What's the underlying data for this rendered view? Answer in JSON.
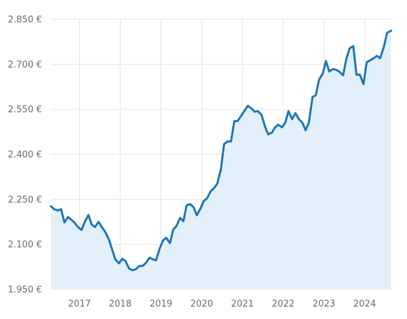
{
  "colors": {
    "line": "#1a75bb",
    "area": "#e4f0f9",
    "grid": "#e4e4e4",
    "tick_text": "#666a73"
  },
  "chart_data": {
    "type": "area",
    "title": "",
    "xlabel": "",
    "ylabel": "",
    "grid": true,
    "legend": "none",
    "xlim": [
      2016.3,
      2024.65
    ],
    "ylim": [
      1950,
      2850
    ],
    "y_ticks": [
      {
        "value": 1950,
        "label": "1.950 €"
      },
      {
        "value": 2100,
        "label": "2.100 €"
      },
      {
        "value": 2250,
        "label": "2.250 €"
      },
      {
        "value": 2400,
        "label": "2.400 €"
      },
      {
        "value": 2550,
        "label": "2.550 €"
      },
      {
        "value": 2700,
        "label": "2.700 €"
      },
      {
        "value": 2850,
        "label": "2.850 €"
      }
    ],
    "x_ticks": [
      {
        "value": 2017,
        "label": "2017"
      },
      {
        "value": 2018,
        "label": "2018"
      },
      {
        "value": 2019,
        "label": "2019"
      },
      {
        "value": 2020,
        "label": "2020"
      },
      {
        "value": 2021,
        "label": "2021"
      },
      {
        "value": 2022,
        "label": "2022"
      },
      {
        "value": 2023,
        "label": "2023"
      },
      {
        "value": 2024,
        "label": "2024"
      }
    ],
    "series": [
      {
        "x": [
          2016.3,
          2016.38,
          2016.47,
          2016.55,
          2016.63,
          2016.72,
          2016.8,
          2016.88,
          2016.97,
          2017.05,
          2017.13,
          2017.22,
          2017.3,
          2017.38,
          2017.47,
          2017.55,
          2017.63,
          2017.72,
          2017.8,
          2017.88,
          2017.97,
          2018.05,
          2018.13,
          2018.22,
          2018.3,
          2018.38,
          2018.47,
          2018.55,
          2018.63,
          2018.72,
          2018.8,
          2018.88,
          2018.97,
          2019.05,
          2019.13,
          2019.22,
          2019.3,
          2019.38,
          2019.47,
          2019.55,
          2019.63,
          2019.72,
          2019.8,
          2019.88,
          2019.97,
          2020.05,
          2020.13,
          2020.22,
          2020.3,
          2020.38,
          2020.47,
          2020.55,
          2020.63,
          2020.72,
          2020.8,
          2020.88,
          2020.97,
          2021.05,
          2021.13,
          2021.22,
          2021.3,
          2021.38,
          2021.47,
          2021.55,
          2021.63,
          2021.72,
          2021.8,
          2021.88,
          2021.97,
          2022.05,
          2022.13,
          2022.22,
          2022.3,
          2022.38,
          2022.47,
          2022.55,
          2022.63,
          2022.72,
          2022.8,
          2022.88,
          2022.97,
          2023.05,
          2023.13,
          2023.22,
          2023.3,
          2023.38,
          2023.47,
          2023.55,
          2023.63,
          2023.72,
          2023.8,
          2023.88,
          2023.97,
          2024.05,
          2024.13,
          2024.22,
          2024.3,
          2024.38,
          2024.47,
          2024.55,
          2024.65
        ],
        "values": [
          2227,
          2217,
          2213,
          2217,
          2173,
          2191,
          2182,
          2172,
          2157,
          2148,
          2175,
          2198,
          2166,
          2158,
          2175,
          2157,
          2142,
          2117,
          2084,
          2050,
          2037,
          2052,
          2044,
          2019,
          2014,
          2017,
          2028,
          2028,
          2038,
          2056,
          2050,
          2047,
          2087,
          2113,
          2122,
          2104,
          2149,
          2161,
          2188,
          2177,
          2230,
          2234,
          2224,
          2197,
          2219,
          2245,
          2253,
          2277,
          2287,
          2302,
          2349,
          2434,
          2443,
          2443,
          2511,
          2511,
          2529,
          2545,
          2562,
          2553,
          2542,
          2544,
          2531,
          2494,
          2467,
          2472,
          2490,
          2499,
          2490,
          2505,
          2544,
          2517,
          2537,
          2518,
          2506,
          2480,
          2506,
          2591,
          2597,
          2649,
          2669,
          2711,
          2676,
          2684,
          2682,
          2675,
          2663,
          2718,
          2753,
          2761,
          2665,
          2666,
          2634,
          2707,
          2713,
          2720,
          2728,
          2720,
          2758,
          2805,
          2812
        ]
      }
    ]
  }
}
